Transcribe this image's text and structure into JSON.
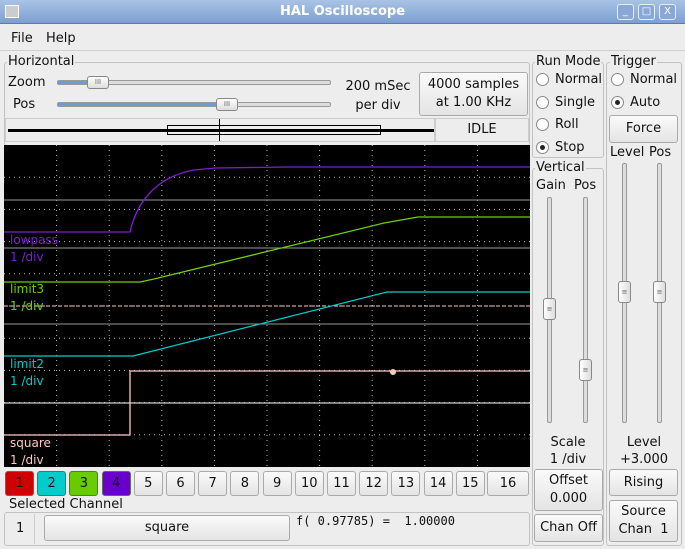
{
  "window": {
    "title": "HAL Oscilloscope",
    "buttons": [
      "minimize",
      "maximize",
      "close"
    ]
  },
  "menu": [
    "File",
    "Help"
  ],
  "horizontal": {
    "label": "Horizontal",
    "zoom_label": "Zoom",
    "pos_label": "Pos",
    "zoom_value": 0.15,
    "pos_value": 0.6,
    "rate_line1": "200 mSec",
    "rate_line2": "per div",
    "samples_line1": "4000 samples",
    "samples_line2": "at 1.00 KHz",
    "status": "IDLE"
  },
  "run_mode": {
    "label": "Run Mode",
    "options": [
      "Normal",
      "Single",
      "Roll",
      "Stop"
    ],
    "selected": "Stop"
  },
  "trigger": {
    "label": "Trigger",
    "options": [
      "Normal",
      "Auto"
    ],
    "selected": "Auto",
    "force": "Force",
    "level_label": "Level",
    "pos_label": "Pos",
    "level_text": "Level",
    "level_value": "+3.000",
    "edge": "Rising",
    "source_line1": "Source",
    "source_line2": "Chan  1"
  },
  "vertical": {
    "label": "Vertical",
    "gain_label": "Gain",
    "pos_label": "Pos",
    "scale_label": "Scale",
    "scale_value": "1 /div",
    "offset_label": "Offset",
    "offset_value": "0.000",
    "chan_off": "Chan Off"
  },
  "traces": [
    {
      "name": "lowpass",
      "scale": "1 /div",
      "color": "#7a1fd0"
    },
    {
      "name": "limit3",
      "scale": "1 /div",
      "color": "#6fd000"
    },
    {
      "name": "limit2",
      "scale": "1 /div",
      "color": "#00cccc"
    },
    {
      "name": "square",
      "scale": "1 /div",
      "color": "#ffc8c0"
    }
  ],
  "channels": [
    {
      "label": "1",
      "color": "#d00000"
    },
    {
      "label": "2",
      "color": "#00cccc"
    },
    {
      "label": "3",
      "color": "#66cc00"
    },
    {
      "label": "4",
      "color": "#6a00cc"
    },
    {
      "label": "5"
    },
    {
      "label": "6"
    },
    {
      "label": "7"
    },
    {
      "label": "8"
    },
    {
      "label": "9"
    },
    {
      "label": "10"
    },
    {
      "label": "11"
    },
    {
      "label": "12"
    },
    {
      "label": "13"
    },
    {
      "label": "14"
    },
    {
      "label": "15"
    },
    {
      "label": "16"
    }
  ],
  "selected_channel": {
    "label": "Selected Channel",
    "number": "1",
    "name": "square",
    "readout": "f( 0.97785) =  1.00000"
  }
}
